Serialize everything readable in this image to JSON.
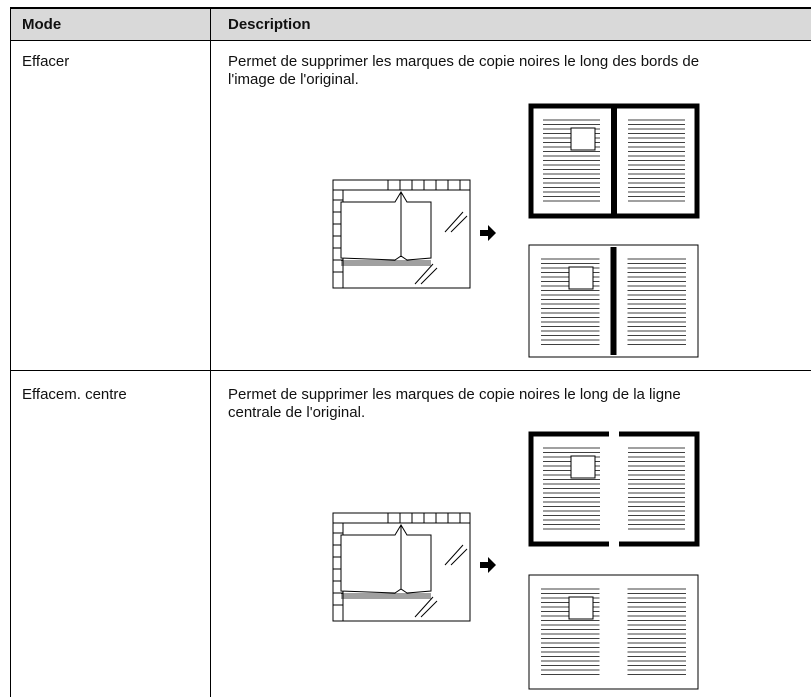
{
  "table": {
    "headers": [
      "Mode",
      "Description"
    ],
    "rows": [
      {
        "mode": "Effacer",
        "description": [
          "Permet de supprimer les marques de copie noires le long des bords de",
          "l'image de l'original."
        ]
      },
      {
        "mode": "Effacem. centre",
        "description": [
          "Permet de supprimer les marques de copie noires le long de la ligne",
          "centrale de l'original."
        ]
      }
    ]
  }
}
